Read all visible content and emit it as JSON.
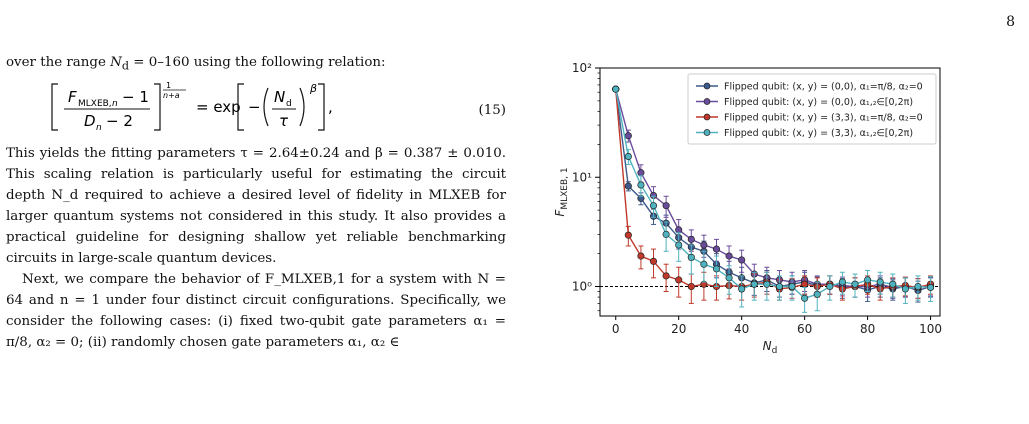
{
  "page_number": "8",
  "text": {
    "para1": "over the range N_d = 0–160 using the following relation:",
    "equation": {
      "lhs": "[ (F_MLXEB,n − 1) / (D_n − 2) ]^(1/(n+a))",
      "rhs": "= exp[ −(N_d / τ)^β ],",
      "number": "(15)"
    },
    "para2": "This yields the fitting parameters τ = 2.64±0.24 and β = 0.387 ± 0.010. This scaling relation is particularly useful for estimating the circuit depth N_d required to achieve a desired level of fidelity in MLXEB for larger quantum systems not considered in this study. It also provides a practical guideline for designing shallow yet reliable benchmarking circuits in large-scale quantum devices.",
    "para3": "Next, we compare the behavior of F_MLXEB,1 for a system with N = 64 and n = 1 under four distinct circuit configurations. Specifically, we consider the following cases: (i) fixed two-qubit gate parameters α₁ = π/8, α₂ = 0; (ii) randomly chosen gate parameters α₁, α₂ ∈"
  },
  "chart_data": {
    "type": "line",
    "xlabel": "N_d",
    "ylabel": "F_MLXEB,1",
    "xlim": [
      -5,
      103
    ],
    "ylim_log10": [
      -0.27,
      2.0
    ],
    "yscale": "log",
    "xticks": [
      0,
      20,
      40,
      60,
      80,
      100
    ],
    "yticks": [
      {
        "value": 1,
        "label": "10⁰"
      },
      {
        "value": 10,
        "label": "10¹"
      },
      {
        "value": 100,
        "label": "10²"
      }
    ],
    "reference_line": {
      "y": 1,
      "style": "dashed"
    },
    "legend_position": "top-right",
    "x": [
      0,
      4,
      8,
      12,
      16,
      20,
      24,
      28,
      32,
      36,
      40,
      44,
      48,
      52,
      56,
      60,
      64,
      68,
      72,
      76,
      80,
      84,
      88,
      92,
      96,
      100
    ],
    "series": [
      {
        "name": "Flipped qubit: (x, y) = (0,0), α₁=π/8, α₂=0",
        "color": "#3d5a8c",
        "values": [
          64,
          8.3,
          6.4,
          4.4,
          3.8,
          2.8,
          2.3,
          2.1,
          1.6,
          1.35,
          1.2,
          1.08,
          1.15,
          1.0,
          1.05,
          1.1,
          1.02,
          1.05,
          0.98,
          1.0,
          0.93,
          1.0,
          0.95,
          1.0,
          0.92,
          1.0
        ],
        "errors": [
          2,
          0.8,
          0.8,
          0.7,
          0.7,
          0.6,
          0.55,
          0.5,
          0.4,
          0.35,
          0.3,
          0.25,
          0.25,
          0.2,
          0.2,
          0.25,
          0.2,
          0.2,
          0.2,
          0.2,
          0.2,
          0.2,
          0.2,
          0.2,
          0.2,
          0.2
        ]
      },
      {
        "name": "Flipped qubit: (x, y) = (0,0), α₁,₂∈[0,2π)",
        "color": "#6a4c9c",
        "values": [
          64,
          24,
          11,
          6.8,
          5.5,
          3.3,
          2.7,
          2.4,
          2.2,
          1.9,
          1.75,
          1.3,
          1.2,
          1.15,
          1.1,
          1.15,
          1.05,
          1.05,
          1.02,
          1.0,
          1.0,
          1.05,
          0.98,
          1.0,
          0.98,
          1.02
        ],
        "errors": [
          2,
          3,
          2,
          1.4,
          1.2,
          0.8,
          0.6,
          0.55,
          0.5,
          0.45,
          0.4,
          0.3,
          0.3,
          0.25,
          0.25,
          0.25,
          0.2,
          0.2,
          0.2,
          0.2,
          0.2,
          0.2,
          0.2,
          0.2,
          0.2,
          0.2
        ]
      },
      {
        "name": "Flipped qubit: (x, y) = (3,3), α₁=π/8, α₂=0",
        "color": "#c0392b",
        "values": [
          64,
          2.95,
          1.9,
          1.7,
          1.25,
          1.15,
          1.0,
          1.05,
          1.0,
          1.02,
          1.0,
          1.05,
          1.1,
          0.95,
          0.98,
          1.05,
          1.0,
          1.05,
          0.95,
          1.0,
          1.05,
          0.95,
          1.0,
          1.02,
          0.98,
          1.05
        ],
        "errors": [
          2,
          0.6,
          0.45,
          0.5,
          0.35,
          0.35,
          0.3,
          0.3,
          0.25,
          0.25,
          0.25,
          0.25,
          0.25,
          0.2,
          0.2,
          0.2,
          0.2,
          0.2,
          0.2,
          0.2,
          0.2,
          0.2,
          0.2,
          0.2,
          0.2,
          0.2
        ]
      },
      {
        "name": "Flipped qubit: (x, y) = (3,3), α₁,₂∈[0,2π)",
        "color": "#4fb3bf",
        "values": [
          64,
          15.5,
          8.5,
          5.5,
          3.0,
          2.4,
          1.85,
          1.6,
          1.45,
          1.2,
          0.95,
          1.05,
          1.05,
          1.0,
          1.0,
          0.78,
          0.85,
          1.0,
          1.1,
          1.05,
          1.15,
          1.1,
          1.05,
          0.95,
          1.0,
          0.98
        ],
        "errors": [
          2,
          2.4,
          1.8,
          1.2,
          0.9,
          0.7,
          0.55,
          0.5,
          0.45,
          0.35,
          0.3,
          0.3,
          0.3,
          0.25,
          0.25,
          0.2,
          0.25,
          0.25,
          0.25,
          0.25,
          0.25,
          0.25,
          0.25,
          0.25,
          0.25,
          0.25
        ]
      }
    ]
  }
}
